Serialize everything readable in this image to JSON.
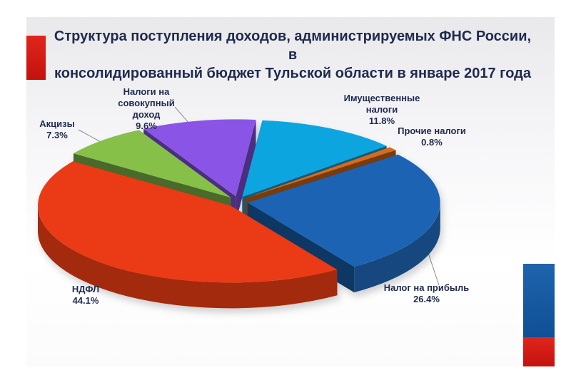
{
  "title": "Структура поступления доходов, администрируемых ФНС России, в консолидированный бюджет Тульской   области   в  январе  2017 года",
  "chart_data": {
    "type": "pie",
    "title": "Структура поступления доходов, администрируемых ФНС России, в консолидированный бюджет Тульской   области   в  январе  2017 года",
    "slices": [
      {
        "name": "Имущественные налоги",
        "label": "Имущественные\nналоги",
        "value": 11.8,
        "value_label": "11.8%",
        "color": "#0ea5e0"
      },
      {
        "name": "Прочие налоги",
        "label": "Прочие налоги",
        "value": 0.8,
        "value_label": "0.8%",
        "color": "#d86a1a"
      },
      {
        "name": "Налог на прибыль",
        "label": "Налог на прибыль",
        "value": 26.4,
        "value_label": "26.4%",
        "color": "#1a64b4"
      },
      {
        "name": "НДФЛ",
        "label": "НДФЛ",
        "value": 44.1,
        "value_label": "44.1%",
        "color": "#ea3a12"
      },
      {
        "name": "Акцизы",
        "label": "Акцизы",
        "value": 7.3,
        "value_label": "7.3%",
        "color": "#86c04a"
      },
      {
        "name": "Налоги на совокупный доход",
        "label": "Налоги на\nсовокупный\nдоход",
        "value": 9.6,
        "value_label": "9.6%",
        "color": "#8a54e6"
      }
    ],
    "style": "3d-exploded"
  }
}
